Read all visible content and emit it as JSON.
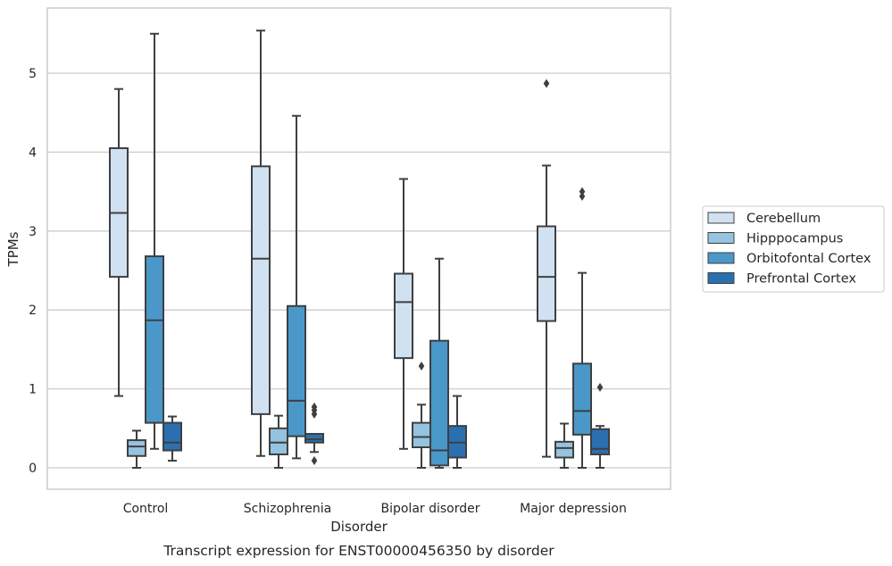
{
  "caption": "Transcript expression for ENST00000456350 by disorder",
  "chart_data": {
    "type": "box",
    "title": "",
    "xlabel": "Disorder",
    "ylabel": "TPMs",
    "ylim": [
      -0.27,
      5.85
    ],
    "yticks": [
      "0",
      "1",
      "2",
      "3",
      "4",
      "5"
    ],
    "grid": "horizontal",
    "legend_placement": "right",
    "categories": [
      "Control",
      "Schizophrenia",
      "Bipolar disorder",
      "Major depression"
    ],
    "series": [
      {
        "name": "Cerebellum",
        "color": "#d0e1f2",
        "boxes": [
          {
            "whisker_low": 0.91,
            "q1": 2.42,
            "median": 3.23,
            "q3": 4.05,
            "whisker_high": 4.8,
            "outliers": []
          },
          {
            "whisker_low": 0.15,
            "q1": 0.68,
            "median": 2.65,
            "q3": 3.82,
            "whisker_high": 5.54,
            "outliers": []
          },
          {
            "whisker_low": 0.24,
            "q1": 1.39,
            "median": 2.1,
            "q3": 2.46,
            "whisker_high": 3.66,
            "outliers": []
          },
          {
            "whisker_low": 0.14,
            "q1": 1.86,
            "median": 2.42,
            "q3": 3.06,
            "whisker_high": 3.83,
            "outliers": [
              4.87
            ]
          }
        ]
      },
      {
        "name": "Hipppocampus",
        "color": "#94c4df",
        "boxes": [
          {
            "whisker_low": 0.0,
            "q1": 0.15,
            "median": 0.27,
            "q3": 0.35,
            "whisker_high": 0.47,
            "outliers": []
          },
          {
            "whisker_low": 0.0,
            "q1": 0.17,
            "median": 0.32,
            "q3": 0.5,
            "whisker_high": 0.66,
            "outliers": []
          },
          {
            "whisker_low": 0.0,
            "q1": 0.26,
            "median": 0.39,
            "q3": 0.57,
            "whisker_high": 0.8,
            "outliers": [
              1.29
            ]
          },
          {
            "whisker_low": 0.0,
            "q1": 0.13,
            "median": 0.25,
            "q3": 0.33,
            "whisker_high": 0.56,
            "outliers": []
          }
        ]
      },
      {
        "name": "Orbitofontal Cortex",
        "color": "#4a98c9",
        "boxes": [
          {
            "whisker_low": 0.24,
            "q1": 0.57,
            "median": 1.87,
            "q3": 2.68,
            "whisker_high": 5.5,
            "outliers": []
          },
          {
            "whisker_low": 0.12,
            "q1": 0.4,
            "median": 0.85,
            "q3": 2.05,
            "whisker_high": 4.46,
            "outliers": []
          },
          {
            "whisker_low": 0.0,
            "q1": 0.03,
            "median": 0.22,
            "q3": 1.61,
            "whisker_high": 2.65,
            "outliers": []
          },
          {
            "whisker_low": 0.0,
            "q1": 0.42,
            "median": 0.72,
            "q3": 1.32,
            "whisker_high": 2.47,
            "outliers": [
              3.44,
              3.5
            ]
          }
        ]
      },
      {
        "name": "Prefrontal Cortex",
        "color": "#2a70b0",
        "boxes": [
          {
            "whisker_low": 0.09,
            "q1": 0.22,
            "median": 0.32,
            "q3": 0.57,
            "whisker_high": 0.65,
            "outliers": []
          },
          {
            "whisker_low": 0.2,
            "q1": 0.32,
            "median": 0.36,
            "q3": 0.43,
            "whisker_high": 0.43,
            "outliers": [
              0.09,
              0.68,
              0.73,
              0.77
            ]
          },
          {
            "whisker_low": 0.0,
            "q1": 0.13,
            "median": 0.32,
            "q3": 0.53,
            "whisker_high": 0.91,
            "outliers": []
          },
          {
            "whisker_low": 0.0,
            "q1": 0.17,
            "median": 0.24,
            "q3": 0.49,
            "whisker_high": 0.53,
            "outliers": [
              1.02
            ]
          }
        ]
      }
    ]
  }
}
